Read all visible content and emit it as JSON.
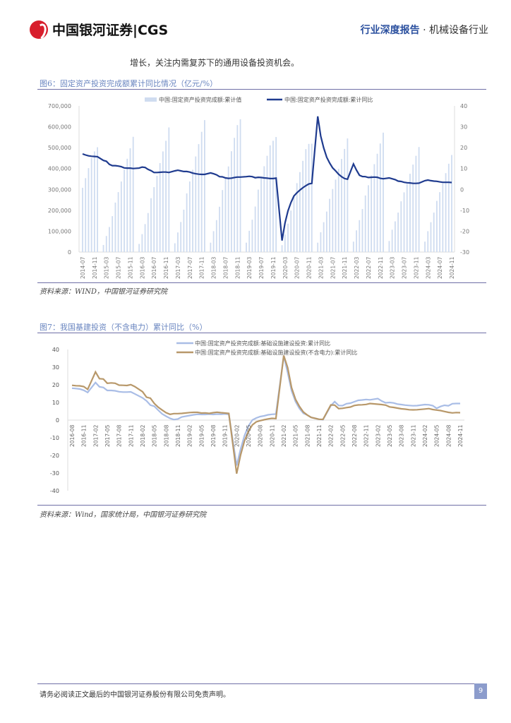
{
  "header": {
    "logo_text": "中国银河证券|CGS",
    "report_type": "行业深度报告",
    "separator": " · ",
    "industry": "机械设备行业"
  },
  "intro_text": "增长，关注内需复苏下的通用设备投资机会。",
  "figure6": {
    "title": "图6：固定资产投资完成额累计同比情况（亿元/%）",
    "source": "资料来源：WIND，中国银河证券研究院"
  },
  "figure7": {
    "title": "图7：我国基建投资（不含电力）累计同比（%）",
    "source": "资料来源：Wind，国家统计局，中国银河证券研究院"
  },
  "footer": {
    "disclaimer": "请务必阅读正文最后的中国银河证券股份有限公司免责声明。",
    "page_number": "9"
  },
  "colors": {
    "bars": "#cfdcf0",
    "yoy_line": "#1f3b8f",
    "infra": "#a9bde6",
    "infra_ex_power": "#b8986a",
    "accent": "#6a86c0"
  },
  "chart_data": [
    {
      "type": "bar+line",
      "legend": [
        "中国:固定资产投资完成额:累计值",
        "中国:固定资产投资完成额:累计同比"
      ],
      "legend_placement": "top",
      "y_left": {
        "ylim": [
          0,
          700000
        ],
        "ticks": [
          "0",
          "100,000",
          "200,000",
          "300,000",
          "400,000",
          "500,000",
          "600,000",
          "700,000"
        ]
      },
      "y_right": {
        "ylim": [
          -30,
          40
        ],
        "ticks": [
          "-30",
          "-20",
          "-10",
          "0",
          "10",
          "20",
          "30",
          "40"
        ]
      },
      "x_ticks": [
        "2014-07",
        "2014-11",
        "2015-03",
        "2015-07",
        "2015-11",
        "2016-03",
        "2016-07",
        "2016-11",
        "2017-03",
        "2017-07",
        "2017-11",
        "2018-03",
        "2018-07",
        "2018-11",
        "2019-03",
        "2019-07",
        "2019-11",
        "2020-03",
        "2020-07",
        "2020-11",
        "2021-03",
        "2021-07",
        "2021-11",
        "2022-03",
        "2022-07",
        "2022-11",
        "2023-03",
        "2023-07",
        "2023-11",
        "2024-03",
        "2024-07",
        "2024-11"
      ],
      "periods": [
        {
          "year": 2014,
          "from_month": 7,
          "cumulative": [
            308000,
            354000,
            402000,
            450000,
            482000,
            502000
          ],
          "yoy": [
            17.0,
            16.5,
            16.1,
            15.9,
            15.8,
            15.7
          ]
        },
        {
          "year": 2015,
          "from_month": 2,
          "cumulative": [
            34000,
            77000,
            120000,
            172000,
            237000,
            287000,
            338000,
            395000,
            447000,
            497000,
            552000
          ],
          "yoy": [
            13.9,
            13.5,
            12.0,
            11.4,
            11.4,
            11.2,
            10.9,
            10.3,
            10.2,
            10.2,
            10.0
          ]
        },
        {
          "year": 2016,
          "from_month": 2,
          "cumulative": [
            39000,
            86000,
            134000,
            187000,
            258000,
            311000,
            365000,
            426000,
            482000,
            533000,
            597000
          ],
          "yoy": [
            10.2,
            10.7,
            10.5,
            9.6,
            9.0,
            8.1,
            8.1,
            8.2,
            8.3,
            8.3,
            8.1
          ]
        },
        {
          "year": 2017,
          "from_month": 2,
          "cumulative": [
            42000,
            94000,
            144000,
            203000,
            281000,
            338000,
            394000,
            458000,
            517000,
            576000,
            632000
          ],
          "yoy": [
            8.9,
            9.2,
            8.9,
            8.6,
            8.6,
            8.3,
            7.8,
            7.5,
            7.3,
            7.2,
            7.2
          ]
        },
        {
          "year": 2018,
          "from_month": 2,
          "cumulative": [
            45000,
            100000,
            153000,
            217000,
            297000,
            353000,
            410000,
            483000,
            547000,
            608000,
            636000
          ],
          "yoy": [
            7.9,
            7.5,
            7.0,
            6.1,
            6.0,
            5.5,
            5.3,
            5.4,
            5.7,
            5.9,
            5.9
          ]
        },
        {
          "year": 2019,
          "from_month": 2,
          "cumulative": [
            45000,
            102000,
            155000,
            218000,
            299000,
            355000,
            411000,
            461000,
            511000,
            533000,
            551000
          ],
          "yoy": [
            6.1,
            6.3,
            6.1,
            5.6,
            5.8,
            5.7,
            5.5,
            5.4,
            5.2,
            5.2,
            5.4
          ]
        },
        {
          "year": 2020,
          "from_month": 2,
          "cumulative": [
            33000,
            84000,
            136000,
            199000,
            271000,
            330000,
            383000,
            437000,
            493000,
            518000,
            519000
          ],
          "yoy": [
            -24.5,
            -16.1,
            -10.3,
            -6.3,
            -3.1,
            -1.6,
            -0.3,
            0.8,
            1.8,
            2.6,
            2.9
          ]
        },
        {
          "year": 2021,
          "from_month": 2,
          "cumulative": [
            45000,
            95000,
            143000,
            194000,
            255000,
            302000,
            347000,
            398000,
            446000,
            494000,
            544000
          ],
          "yoy": [
            35.0,
            25.6,
            19.9,
            15.4,
            12.6,
            10.3,
            8.9,
            7.3,
            6.1,
            5.2,
            4.9
          ]
        },
        {
          "year": 2022,
          "from_month": 2,
          "cumulative": [
            50000,
            104000,
            153000,
            206000,
            271000,
            320000,
            368000,
            421000,
            471000,
            520000,
            572000
          ],
          "yoy": [
            12.2,
            9.3,
            6.8,
            6.2,
            6.1,
            5.7,
            5.8,
            5.9,
            5.8,
            5.3,
            5.1
          ]
        },
        {
          "year": 2023,
          "from_month": 2,
          "cumulative": [
            53000,
            107000,
            147000,
            189000,
            243000,
            286000,
            327000,
            375000,
            419000,
            461000,
            503000
          ],
          "yoy": [
            5.5,
            5.1,
            4.7,
            4.0,
            3.8,
            3.4,
            3.2,
            3.1,
            2.9,
            2.9,
            3.0
          ]
        },
        {
          "year": 2024,
          "from_month": 2,
          "cumulative": [
            50000,
            100000,
            143000,
            189000,
            245000,
            287000,
            329000,
            378000,
            423000,
            465000
          ],
          "yoy": [
            4.2,
            4.5,
            4.2,
            4.0,
            3.9,
            3.6,
            3.4,
            3.4,
            3.4,
            3.3
          ]
        }
      ]
    },
    {
      "type": "line",
      "legend": [
        "中国:固定资产投资完成额:基础设施建设投资:累计同比",
        "中国:固定资产投资完成额:基础设施建设投资(不含电力):累计同比"
      ],
      "legend_placement": "top",
      "ylim": [
        -40,
        40
      ],
      "y_ticks": [
        "40",
        "30",
        "20",
        "10",
        "0",
        "-10",
        "-20",
        "-30",
        "-40"
      ],
      "x_ticks": [
        "2016-08",
        "2016-11",
        "2017-02",
        "2017-05",
        "2017-08",
        "2017-11",
        "2018-02",
        "2018-05",
        "2018-08",
        "2018-11",
        "2019-02",
        "2019-05",
        "2019-08",
        "2019-11",
        "2020-02",
        "2020-05",
        "2020-08",
        "2020-11",
        "2021-02",
        "2021-05",
        "2021-08",
        "2021-11",
        "2022-02",
        "2022-05",
        "2022-08",
        "2022-11",
        "2023-02",
        "2023-05",
        "2023-08",
        "2023-11",
        "2024-02",
        "2024-05",
        "2024-08",
        "2024-11"
      ],
      "periods": [
        {
          "year": 2016,
          "from_month": 8,
          "infra": [
            18.1,
            17.9,
            17.6,
            16.9,
            15.7
          ],
          "infra_ex_power": [
            19.7,
            19.5,
            19.4,
            19.0,
            17.4
          ]
        },
        {
          "year": 2017,
          "from_month": 2,
          "infra": [
            21.3,
            18.9,
            18.5,
            16.8,
            16.8,
            16.6,
            16.1,
            15.9,
            15.9,
            16.0,
            14.9
          ],
          "infra_ex_power": [
            27.3,
            23.5,
            23.3,
            20.9,
            21.1,
            20.9,
            19.8,
            19.7,
            19.6,
            20.1,
            19.0
          ]
        },
        {
          "year": 2018,
          "from_month": 2,
          "infra": [
            12.6,
            10.9,
            8.5,
            7.8,
            5.6,
            3.5,
            2.2,
            1.0,
            0.3,
            0.6,
            1.8
          ],
          "infra_ex_power": [
            16.1,
            13.0,
            12.4,
            9.4,
            7.3,
            5.7,
            4.2,
            3.3,
            3.7,
            3.7,
            3.8
          ]
        },
        {
          "year": 2019,
          "from_month": 2,
          "infra": [
            2.6,
            3.0,
            3.3,
            3.2,
            3.2,
            3.4,
            3.2,
            3.4,
            3.3,
            3.5,
            3.3
          ],
          "infra_ex_power": [
            4.3,
            4.4,
            4.4,
            4.0,
            4.1,
            3.8,
            4.2,
            4.5,
            4.2,
            4.0,
            3.8
          ]
        },
        {
          "year": 2020,
          "from_month": 2,
          "infra": [
            -25.7,
            -16.4,
            -8.8,
            -3.3,
            0.1,
            1.2,
            2.0,
            2.4,
            3.0,
            3.3,
            3.4
          ],
          "infra_ex_power": [
            -30.3,
            -19.7,
            -11.8,
            -6.3,
            -2.7,
            -1.0,
            -0.3,
            0.2,
            0.7,
            1.0,
            0.9
          ]
        },
        {
          "year": 2021,
          "from_month": 2,
          "infra": [
            36.3,
            26.9,
            16.6,
            10.5,
            6.6,
            3.9,
            2.9,
            1.5,
            1.0,
            0.5,
            0.2
          ],
          "infra_ex_power": [
            36.6,
            29.7,
            18.4,
            11.8,
            7.8,
            4.6,
            2.9,
            1.5,
            1.0,
            0.5,
            0.4
          ]
        },
        {
          "year": 2022,
          "from_month": 2,
          "infra": [
            8.1,
            10.5,
            8.3,
            8.2,
            9.3,
            9.6,
            10.4,
            11.2,
            11.4,
            11.7,
            11.5
          ],
          "infra_ex_power": [
            8.6,
            8.5,
            6.5,
            6.7,
            7.1,
            7.4,
            8.3,
            8.6,
            8.7,
            8.9,
            9.4
          ]
        },
        {
          "year": 2023,
          "from_month": 2,
          "infra": [
            12.2,
            10.8,
            9.8,
            10.0,
            9.7,
            9.1,
            8.8,
            8.5,
            8.3,
            8.1,
            8.2
          ],
          "infra_ex_power": [
            9.0,
            8.8,
            8.5,
            7.5,
            7.2,
            6.8,
            6.4,
            6.2,
            5.9,
            5.8,
            5.9
          ]
        },
        {
          "year": 2024,
          "from_month": 2,
          "infra": [
            8.8,
            8.7,
            8.2,
            6.7,
            7.7,
            8.4,
            8.1,
            9.3,
            9.4,
            9.4
          ],
          "infra_ex_power": [
            6.3,
            6.5,
            6.0,
            5.7,
            5.4,
            4.9,
            4.4,
            4.1,
            4.3,
            4.2
          ]
        }
      ]
    }
  ]
}
